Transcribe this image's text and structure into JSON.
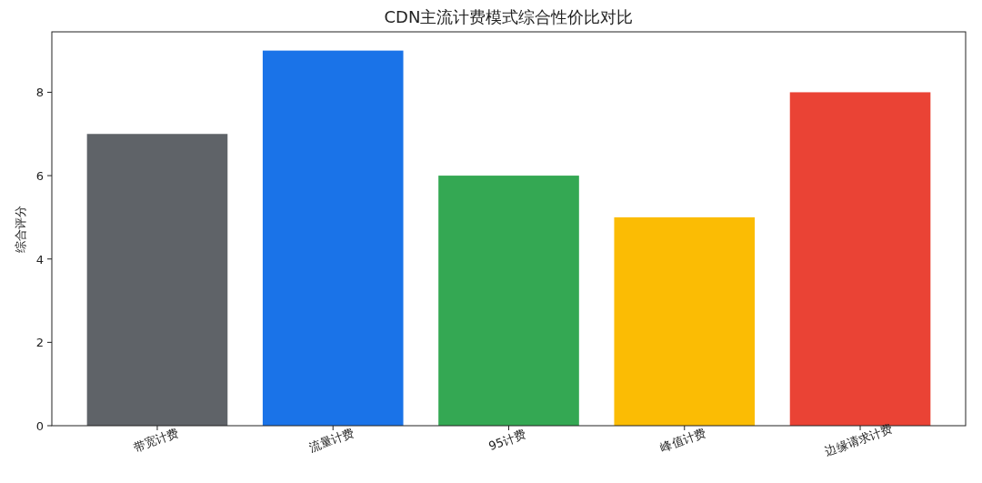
{
  "chart_data": {
    "type": "bar",
    "title": "CDN主流计费模式综合性价比对比",
    "ylabel": "综合评分",
    "categories": [
      "带宽计费",
      "流量计费",
      "95计费",
      "峰值计费",
      "边缘请求计费"
    ],
    "values": [
      7,
      9,
      6,
      5,
      8
    ],
    "colors": [
      "#5f6368",
      "#1a73e8",
      "#34a853",
      "#fbbc04",
      "#ea4335"
    ],
    "ylim": [
      0,
      9.45
    ],
    "yticks": [
      0,
      2,
      4,
      6,
      8
    ]
  }
}
